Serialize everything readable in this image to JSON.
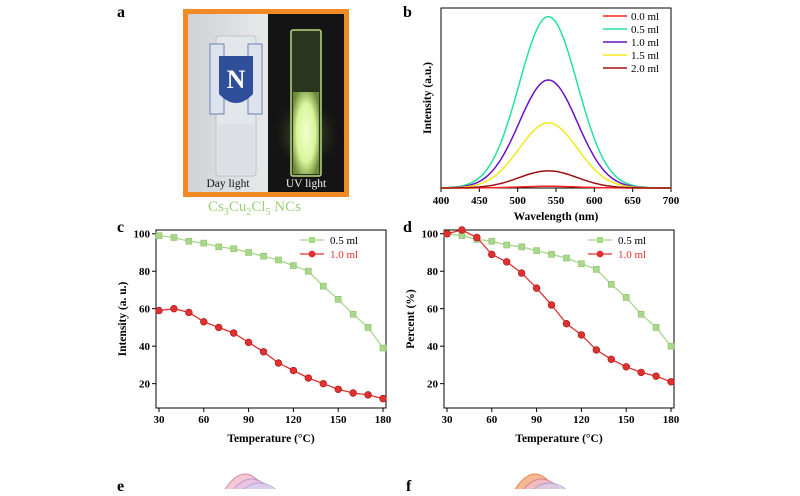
{
  "panels": {
    "a": "a",
    "b": "b",
    "c": "c",
    "d": "d",
    "e": "e",
    "f": "f"
  },
  "photo": {
    "left_label": "Day light",
    "right_label": "UV light",
    "logo_letter": "N",
    "caption_parts": [
      "Cs",
      "3",
      "Cu",
      "2",
      "Cl",
      "5",
      " NCs"
    ],
    "colors": {
      "border": "#f08a24",
      "caption": "#9bd07a",
      "glow": "#e8ffb0"
    }
  },
  "chart_data": [
    {
      "id": "b",
      "type": "line",
      "title": "",
      "xlabel": "Wavelength (nm)",
      "ylabel": "Intensity (a.u.)",
      "xlim": [
        400,
        700
      ],
      "xticks": [
        400,
        450,
        500,
        550,
        600,
        650,
        700
      ],
      "ylim": [
        0,
        1.05
      ],
      "yticks_shown": false,
      "legend_position": "top-right",
      "peak_wavelength": 540,
      "peak_width_sigma": 38,
      "series": [
        {
          "name": "0.0 ml",
          "color": "#ff2020",
          "peak": 0.01
        },
        {
          "name": "0.5 ml",
          "color": "#22e0a0",
          "peak": 1.0
        },
        {
          "name": "1.0 ml",
          "color": "#6a10c8",
          "peak": 0.63
        },
        {
          "name": "1.5 ml",
          "color": "#f5e81a",
          "peak": 0.38
        },
        {
          "name": "2.0 ml",
          "color": "#9a1010",
          "peak": 0.1
        }
      ]
    },
    {
      "id": "c",
      "type": "line",
      "title": "",
      "xlabel": "Temperature (°C)",
      "ylabel": "Intensity (a. u.)",
      "xlim": [
        28,
        182
      ],
      "xticks": [
        30,
        60,
        90,
        120,
        150,
        180
      ],
      "ylim": [
        7,
        102
      ],
      "yticks": [
        20,
        40,
        60,
        80,
        100
      ],
      "legend_position": "top-right",
      "series": [
        {
          "name": "0.5 ml",
          "color": "#a8d888",
          "marker": "square",
          "x": [
            30,
            40,
            50,
            60,
            70,
            80,
            90,
            100,
            110,
            120,
            130,
            140,
            150,
            160,
            170,
            180
          ],
          "y": [
            99,
            98,
            96,
            95,
            93,
            92,
            90,
            88,
            86,
            83,
            80,
            72,
            65,
            57,
            50,
            39
          ]
        },
        {
          "name": "1.0 ml",
          "color": "#e03030",
          "marker": "circle",
          "x": [
            30,
            40,
            50,
            60,
            70,
            80,
            90,
            100,
            110,
            120,
            130,
            140,
            150,
            160,
            170,
            180
          ],
          "y": [
            59,
            60,
            58,
            53,
            50,
            47,
            42,
            37,
            31,
            27,
            23,
            20,
            17,
            15,
            14,
            12
          ]
        }
      ]
    },
    {
      "id": "d",
      "type": "line",
      "title": "",
      "xlabel": "Temperature (°C)",
      "ylabel": "Percent (%)",
      "xlim": [
        28,
        182
      ],
      "xticks": [
        30,
        60,
        90,
        120,
        150,
        180
      ],
      "ylim": [
        7,
        102
      ],
      "yticks": [
        20,
        40,
        60,
        80,
        100
      ],
      "legend_position": "top-right",
      "series": [
        {
          "name": "0.5 ml",
          "color": "#a8d888",
          "marker": "square",
          "x": [
            30,
            40,
            50,
            60,
            70,
            80,
            90,
            100,
            110,
            120,
            130,
            140,
            150,
            160,
            170,
            180
          ],
          "y": [
            100,
            99,
            97,
            96,
            94,
            93,
            91,
            89,
            87,
            84,
            81,
            73,
            66,
            57,
            50,
            40
          ]
        },
        {
          "name": "1.0 ml",
          "color": "#e03030",
          "marker": "circle",
          "x": [
            30,
            40,
            50,
            60,
            70,
            80,
            90,
            100,
            110,
            120,
            130,
            140,
            150,
            160,
            170,
            180
          ],
          "y": [
            100,
            102,
            98,
            89,
            85,
            79,
            71,
            62,
            52,
            46,
            38,
            33,
            29,
            26,
            24,
            21
          ]
        }
      ]
    }
  ]
}
